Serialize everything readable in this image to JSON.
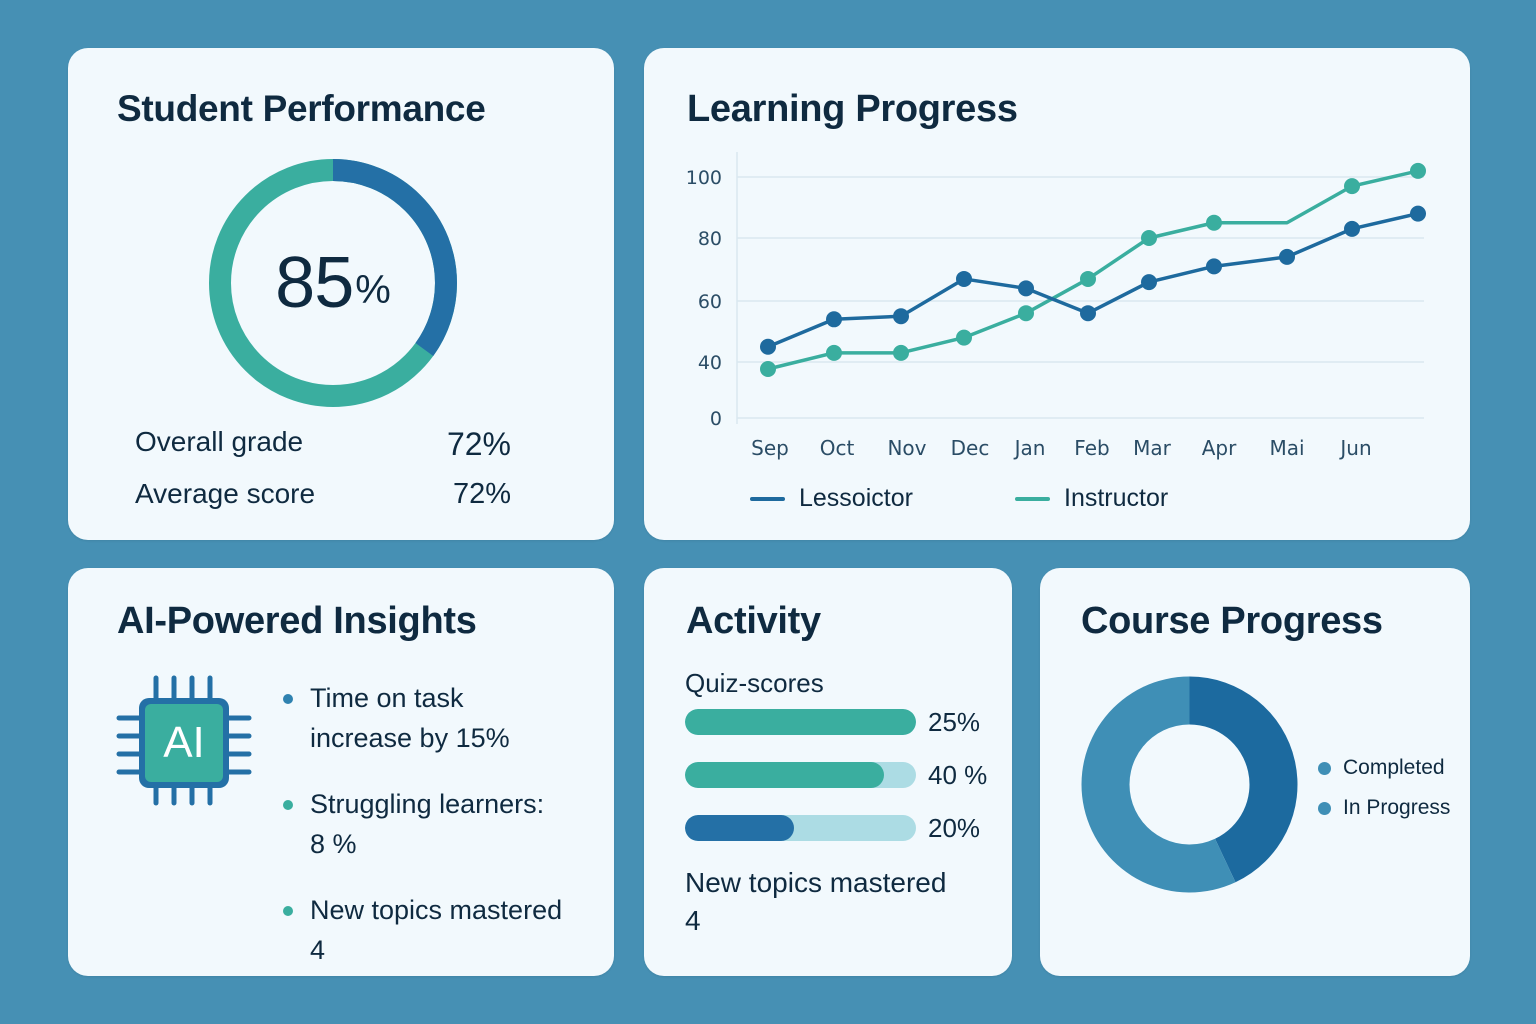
{
  "colors": {
    "page_background": "#4690b4",
    "card_background": "#f2f9fd",
    "text_primary": "#0f2a40",
    "teal": "#3aae9f",
    "blue": "#1e6a9e",
    "blue_mid": "#3f8fb6",
    "track": "#acdce4"
  },
  "student_performance": {
    "title": "Student Performance",
    "donut_value": "85",
    "donut_unit": "%",
    "donut_segments": [
      {
        "name": "blue",
        "color": "#2470a6",
        "fraction": 0.35
      },
      {
        "name": "teal",
        "color": "#3aae9f",
        "fraction": 0.65
      }
    ],
    "stats": [
      {
        "label": "Overall grade",
        "value": "72%"
      },
      {
        "label": "Average score",
        "value": "72%"
      }
    ]
  },
  "learning_progress": {
    "title": "Learning Progress",
    "legend": [
      {
        "label": "Lessoictor",
        "color": "#1e6a9e"
      },
      {
        "label": "Instructor",
        "color": "#3aae9f"
      }
    ]
  },
  "chart_data": {
    "type": "line",
    "title": "Learning Progress",
    "xlabel": "",
    "ylabel": "",
    "categories": [
      "Sep",
      "Oct",
      "Nov",
      "Dec",
      "Jan",
      "Feb",
      "Mar",
      "Apr",
      "Mai",
      "Jun",
      ""
    ],
    "y_ticks": [
      0,
      40,
      60,
      80,
      100
    ],
    "ylim": [
      0,
      100
    ],
    "grid": true,
    "legend_position": "bottom",
    "series": [
      {
        "name": "Lessoictor",
        "color": "#1e6a9e",
        "values": [
          45,
          54,
          55,
          67,
          64,
          56,
          66,
          71,
          74,
          83,
          88
        ]
      },
      {
        "name": "Instructor",
        "color": "#3aae9f",
        "values": [
          35,
          43,
          43,
          48,
          56,
          67,
          80,
          85,
          85,
          97,
          102
        ]
      }
    ]
  },
  "ai_insights": {
    "title": "AI-Powered Insights",
    "chip_label": "AI",
    "items": [
      {
        "text": "Time on task increase by 15%",
        "dot_color": "#2f82b0"
      },
      {
        "text": "Struggling learners: 8 %",
        "dot_color": "#3aae9f"
      },
      {
        "text": "New topics mastered 4",
        "dot_color": "#3aae9f"
      }
    ]
  },
  "activity": {
    "title": "Activity",
    "subtitle": "Quiz-scores",
    "bars": [
      {
        "label": "25%",
        "fill_pct": 100,
        "color": "#3aae9f"
      },
      {
        "label": "40 %",
        "fill_pct": 86,
        "color": "#3aae9f"
      },
      {
        "label": "20%",
        "fill_pct": 47,
        "color": "#2470a6"
      }
    ],
    "topics_label": "New topics mastered",
    "topics_value": "4"
  },
  "course_progress": {
    "title": "Course Progress",
    "segments": [
      {
        "label": "Completed",
        "color": "#1c6a9f",
        "fraction": 0.43
      },
      {
        "label": "In Progress",
        "color": "#3f8fb6",
        "fraction": 0.57
      }
    ],
    "legend": [
      {
        "label": "Completed",
        "color": "#3f8fb6"
      },
      {
        "label": "In Progress",
        "color": "#3f8fb6"
      }
    ]
  }
}
